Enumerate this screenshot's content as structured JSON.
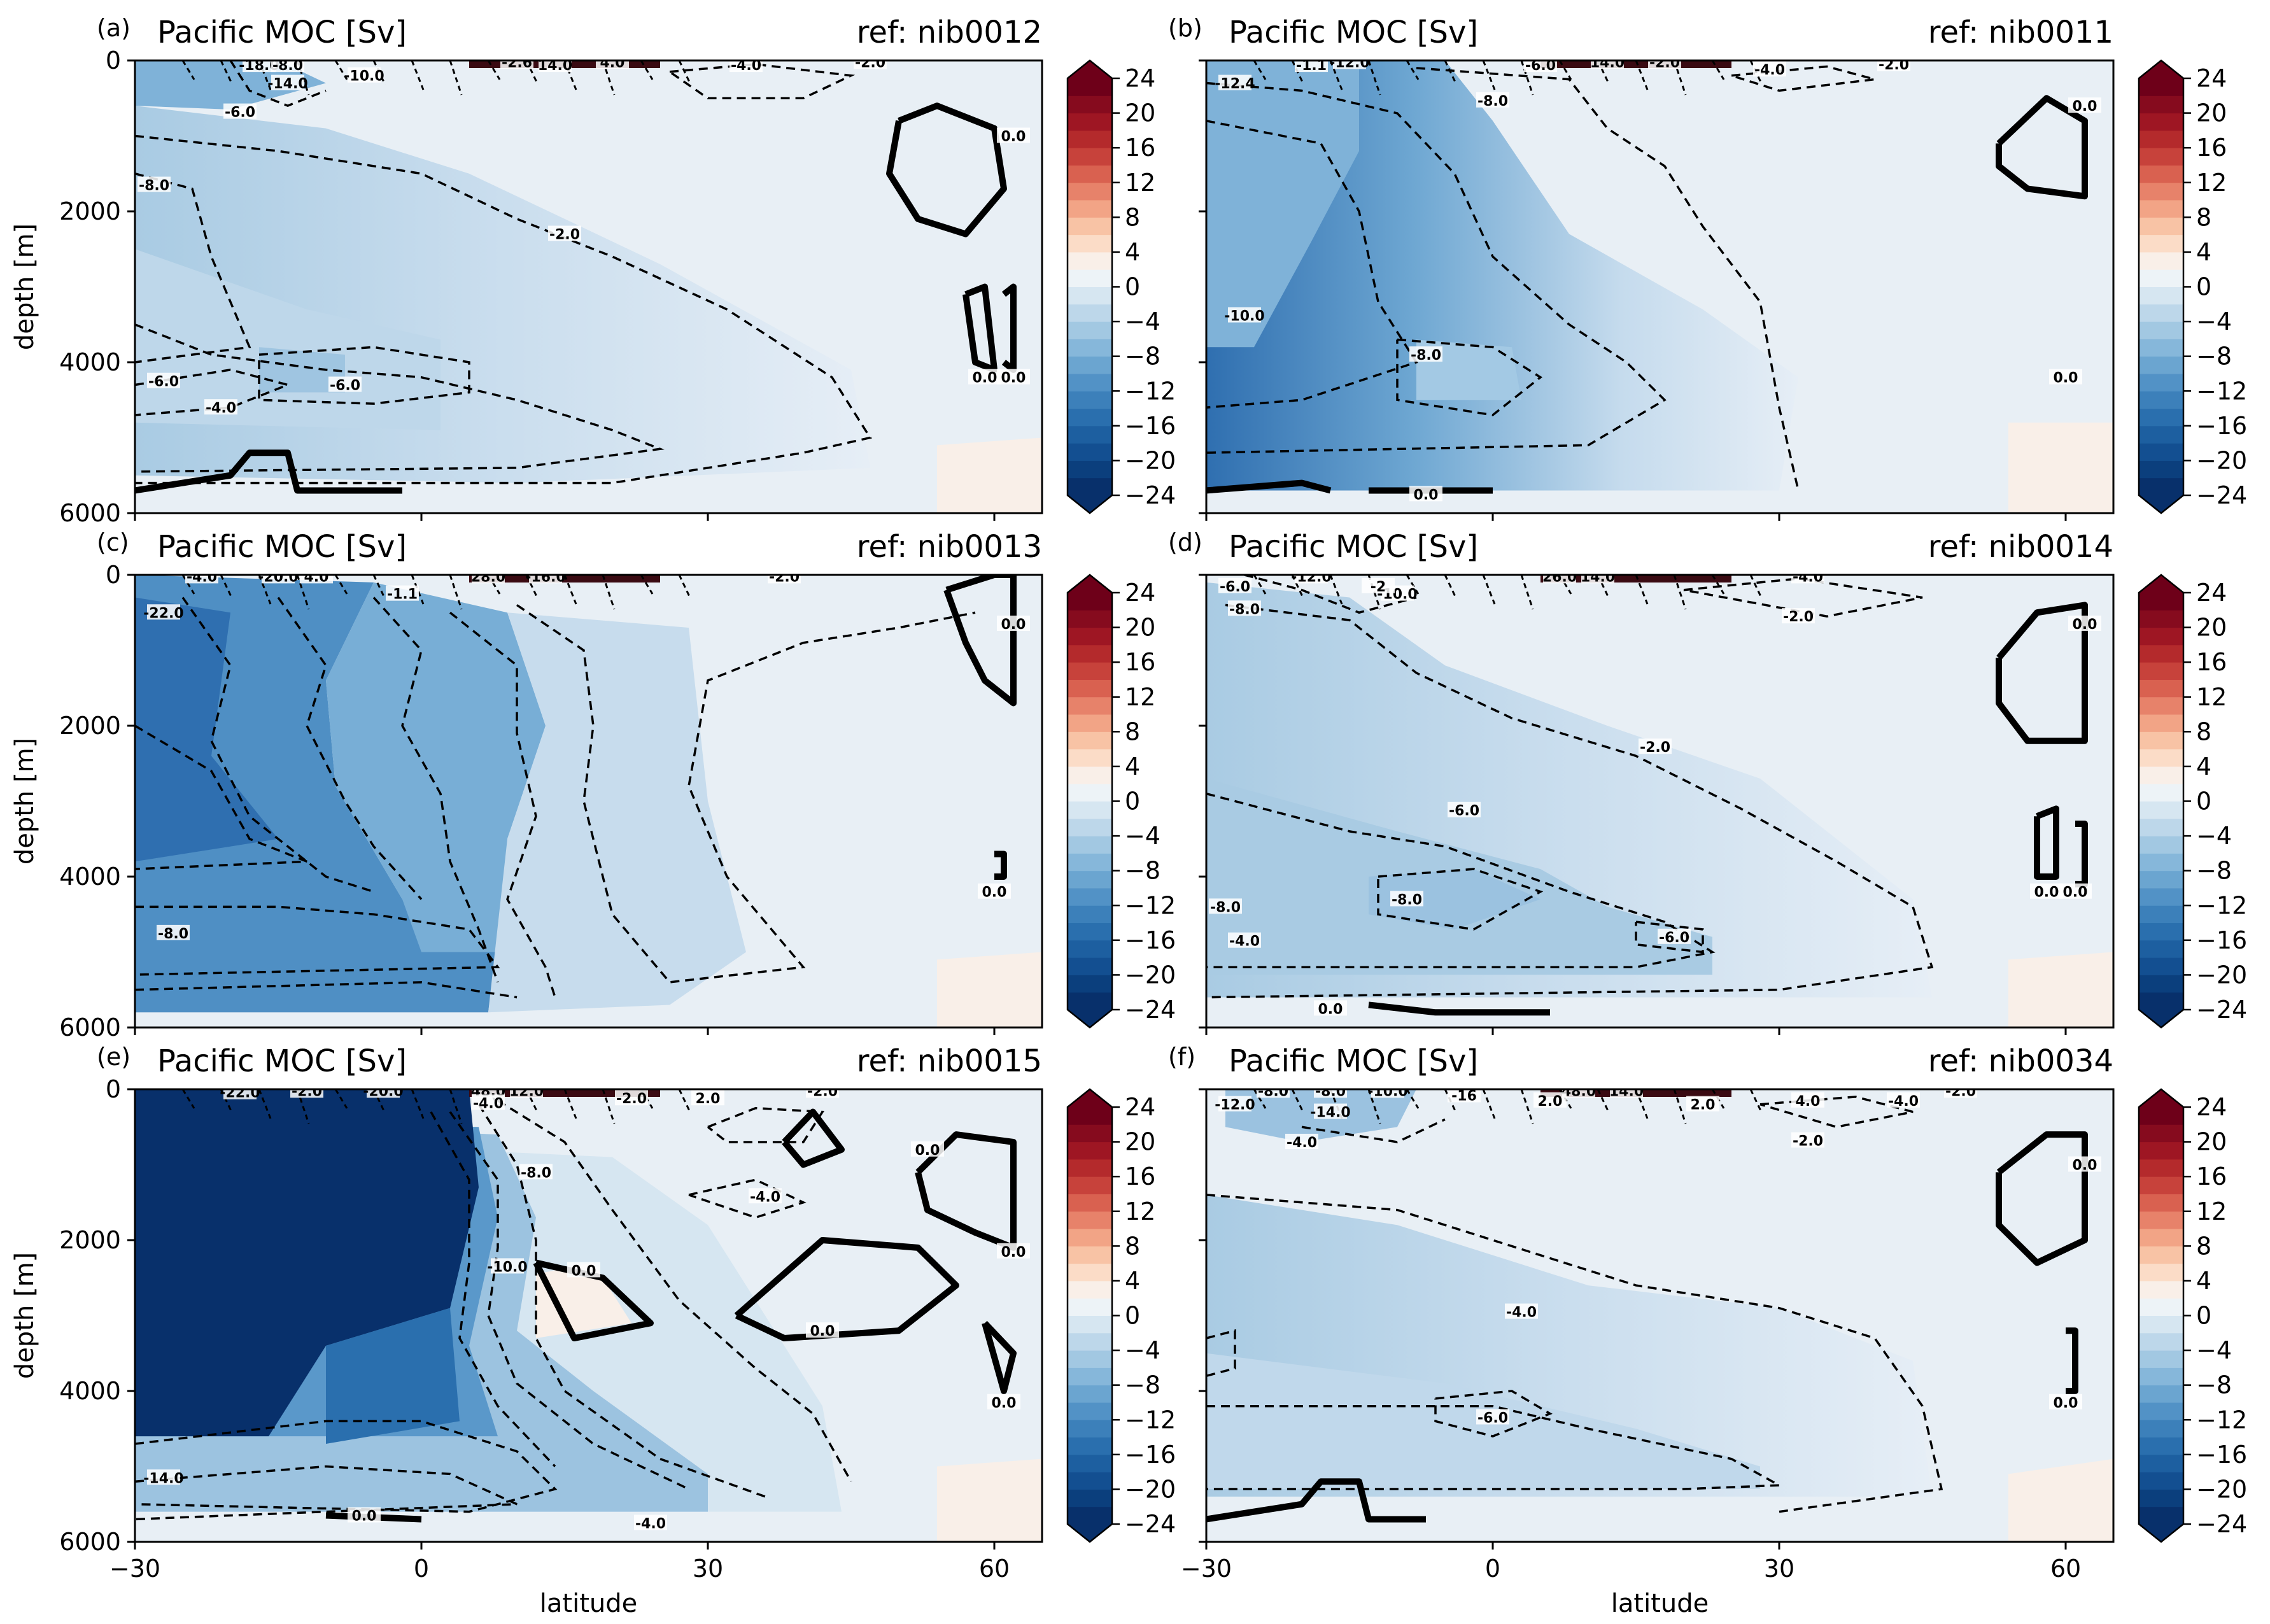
{
  "figure": {
    "xlabel": "latitude",
    "ylabel": "depth [m]"
  },
  "chart_data": [
    {
      "type": "heatmap",
      "panel": "(a)",
      "title": "Pacific MOC [Sv]",
      "ref": "ref: nib0012",
      "xlim": [
        -30,
        65
      ],
      "ylim": [
        6000,
        0
      ],
      "xticks": [
        "−30",
        "0",
        "30",
        "60"
      ],
      "yticks": [
        "0",
        "2000",
        "4000",
        "6000"
      ],
      "contour_labels": [
        {
          "text": "-18.0",
          "lat": -17,
          "depth": 60
        },
        {
          "text": "-14.0",
          "lat": -14,
          "depth": 300
        },
        {
          "text": "-10.0",
          "lat": -6,
          "depth": 200
        },
        {
          "text": "-6.0",
          "lat": -19,
          "depth": 680
        },
        {
          "text": "-2.6",
          "lat": 10,
          "depth": 20
        },
        {
          "text": "-8.0",
          "lat": -14,
          "depth": 60
        },
        {
          "text": "14.0",
          "lat": 14,
          "depth": 60
        },
        {
          "text": "4.0",
          "lat": 20,
          "depth": 20
        },
        {
          "text": "-4.0",
          "lat": 34,
          "depth": 60
        },
        {
          "text": "-2.0",
          "lat": 47,
          "depth": 20
        },
        {
          "text": "-8.0",
          "lat": -28,
          "depth": 1650
        },
        {
          "text": "-2.0",
          "lat": 15,
          "depth": 2300
        },
        {
          "text": "-6.0",
          "lat": -27,
          "depth": 4250
        },
        {
          "text": "-4.0",
          "lat": -21,
          "depth": 4600
        },
        {
          "text": "-6.0",
          "lat": -8,
          "depth": 4300
        },
        {
          "text": "0.0",
          "lat": 62,
          "depth": 1000
        },
        {
          "text": "0.0",
          "lat": 59,
          "depth": 4200
        },
        {
          "text": "0.0",
          "lat": 62,
          "depth": 4200
        }
      ]
    },
    {
      "type": "heatmap",
      "panel": "(b)",
      "title": "Pacific MOC [Sv]",
      "ref": "ref: nib0011",
      "xlim": [
        -30,
        65
      ],
      "ylim": [
        6000,
        0
      ],
      "xticks": [
        "−30",
        "0",
        "30",
        "60"
      ],
      "yticks": [
        "0",
        "2000",
        "4000",
        "6000"
      ],
      "contour_labels": [
        {
          "text": "-1.1",
          "lat": -19,
          "depth": 60
        },
        {
          "text": "-12.0",
          "lat": -15,
          "depth": 20
        },
        {
          "text": "-6.0",
          "lat": 5,
          "depth": 60
        },
        {
          "text": "14.0",
          "lat": 12,
          "depth": 20
        },
        {
          "text": "-2.0",
          "lat": 18,
          "depth": 20
        },
        {
          "text": "-8.0",
          "lat": 0,
          "depth": 530
        },
        {
          "text": "-4.0",
          "lat": 29,
          "depth": 120
        },
        {
          "text": "-2.0",
          "lat": 42,
          "depth": 50
        },
        {
          "text": "-12.4",
          "lat": -27,
          "depth": 300
        },
        {
          "text": "-10.0",
          "lat": -26,
          "depth": 3380
        },
        {
          "text": "-8.0",
          "lat": -7,
          "depth": 3900
        },
        {
          "text": "0.0",
          "lat": 62,
          "depth": 600
        },
        {
          "text": "0.0",
          "lat": 60,
          "depth": 4200
        },
        {
          "text": "0.0",
          "lat": -7,
          "depth": 5750
        }
      ]
    },
    {
      "type": "heatmap",
      "panel": "(c)",
      "title": "Pacific MOC [Sv]",
      "ref": "ref: nib0013",
      "xlim": [
        -30,
        65
      ],
      "ylim": [
        6000,
        0
      ],
      "xticks": [
        "−30",
        "0",
        "30",
        "60"
      ],
      "yticks": [
        "0",
        "2000",
        "4000",
        "6000"
      ],
      "contour_labels": [
        {
          "text": "-4.0",
          "lat": -23,
          "depth": 20
        },
        {
          "text": "-20.0",
          "lat": -15,
          "depth": 20
        },
        {
          "text": "4.0",
          "lat": -11,
          "depth": 20
        },
        {
          "text": "-22.0",
          "lat": -27,
          "depth": 500
        },
        {
          "text": "-1.1",
          "lat": -2,
          "depth": 250
        },
        {
          "text": "28.0",
          "lat": 7,
          "depth": 20
        },
        {
          "text": "-16.0",
          "lat": 13,
          "depth": 20
        },
        {
          "text": "-2.0",
          "lat": 38,
          "depth": 20
        },
        {
          "text": "-8.0",
          "lat": -26,
          "depth": 4750
        },
        {
          "text": "0.0",
          "lat": 62,
          "depth": 650
        },
        {
          "text": "0.0",
          "lat": 60,
          "depth": 4200
        }
      ]
    },
    {
      "type": "heatmap",
      "panel": "(d)",
      "title": "Pacific MOC [Sv]",
      "ref": "ref: nib0014",
      "xlim": [
        -30,
        65
      ],
      "ylim": [
        6000,
        0
      ],
      "xticks": [
        "−30",
        "0",
        "30",
        "60"
      ],
      "yticks": [
        "0",
        "2000",
        "4000",
        "6000"
      ],
      "contour_labels": [
        {
          "text": "-12.0",
          "lat": -19,
          "depth": 20
        },
        {
          "text": "-6.0",
          "lat": -27,
          "depth": 150
        },
        {
          "text": "-10.0",
          "lat": -10,
          "depth": 250
        },
        {
          "text": "-2",
          "lat": -12,
          "depth": 150
        },
        {
          "text": "26.0",
          "lat": 7,
          "depth": 20
        },
        {
          "text": "14.0",
          "lat": 11,
          "depth": 20
        },
        {
          "text": "-8.0",
          "lat": -26,
          "depth": 450
        },
        {
          "text": "-4.0",
          "lat": 33,
          "depth": 20
        },
        {
          "text": "-2.0",
          "lat": 32,
          "depth": 550
        },
        {
          "text": "-2.0",
          "lat": 17,
          "depth": 2280
        },
        {
          "text": "-6.0",
          "lat": -3,
          "depth": 3120
        },
        {
          "text": "-8.0",
          "lat": -28,
          "depth": 4400
        },
        {
          "text": "-8.0",
          "lat": -9,
          "depth": 4300
        },
        {
          "text": "-4.0",
          "lat": -26,
          "depth": 4850
        },
        {
          "text": "-6.0",
          "lat": 19,
          "depth": 4800
        },
        {
          "text": "0.0",
          "lat": 62,
          "depth": 650
        },
        {
          "text": "0.0",
          "lat": 58,
          "depth": 4200
        },
        {
          "text": "0.0",
          "lat": 61,
          "depth": 4200
        },
        {
          "text": "0.0",
          "lat": -17,
          "depth": 5750
        }
      ]
    },
    {
      "type": "heatmap",
      "panel": "(e)",
      "title": "Pacific MOC [Sv]",
      "ref": "ref: nib0015",
      "xlim": [
        -30,
        65
      ],
      "ylim": [
        6000,
        0
      ],
      "xticks": [
        "−30",
        "0",
        "30",
        "60"
      ],
      "yticks": [
        "0",
        "2000",
        "4000",
        "6000"
      ],
      "contour_labels": [
        {
          "text": "-22.0",
          "lat": -19,
          "depth": 40
        },
        {
          "text": "-2.0",
          "lat": -12,
          "depth": 20
        },
        {
          "text": "-20.0",
          "lat": -4,
          "depth": 20
        },
        {
          "text": "48.0",
          "lat": 7,
          "depth": 20
        },
        {
          "text": "12.0",
          "lat": 11,
          "depth": 20
        },
        {
          "text": "-4.0",
          "lat": 7,
          "depth": 180
        },
        {
          "text": "-2.0",
          "lat": 22,
          "depth": 120
        },
        {
          "text": "2.0",
          "lat": 30,
          "depth": 120
        },
        {
          "text": "-2.0",
          "lat": 42,
          "depth": 20
        },
        {
          "text": "-8.0",
          "lat": 12,
          "depth": 1100
        },
        {
          "text": "-4.0",
          "lat": 36,
          "depth": 1420
        },
        {
          "text": "-10.0",
          "lat": 9,
          "depth": 2350
        },
        {
          "text": "0.0",
          "lat": 17,
          "depth": 2400
        },
        {
          "text": "0.0",
          "lat": 53,
          "depth": 800
        },
        {
          "text": "0.0",
          "lat": 42,
          "depth": 3200
        },
        {
          "text": "0.0",
          "lat": 62,
          "depth": 2150
        },
        {
          "text": "0.0",
          "lat": 61,
          "depth": 4150
        },
        {
          "text": "-14.0",
          "lat": -27,
          "depth": 5150
        },
        {
          "text": "-4.0",
          "lat": 24,
          "depth": 5750
        },
        {
          "text": "0.0",
          "lat": -6,
          "depth": 5650
        }
      ]
    },
    {
      "type": "heatmap",
      "panel": "(f)",
      "title": "Pacific MOC [Sv]",
      "ref": "ref: nib0034",
      "xlim": [
        -30,
        65
      ],
      "ylim": [
        6000,
        0
      ],
      "xticks": [
        "−30",
        "0",
        "30",
        "60"
      ],
      "yticks": [
        "0",
        "2000",
        "4000",
        "6000"
      ],
      "contour_labels": [
        {
          "text": "-8.0",
          "lat": -23,
          "depth": 20
        },
        {
          "text": "-12.0",
          "lat": -27,
          "depth": 200
        },
        {
          "text": "-14.0",
          "lat": -17,
          "depth": 300
        },
        {
          "text": "-8.0",
          "lat": -17,
          "depth": 20
        },
        {
          "text": "-10.0",
          "lat": -11,
          "depth": 20
        },
        {
          "text": "-16",
          "lat": -3,
          "depth": 80
        },
        {
          "text": "48.0",
          "lat": 9,
          "depth": 20
        },
        {
          "text": "14.0",
          "lat": 14,
          "depth": 20
        },
        {
          "text": "2.0",
          "lat": 6,
          "depth": 150
        },
        {
          "text": "2.0",
          "lat": 22,
          "depth": 200
        },
        {
          "text": "-4.0",
          "lat": -20,
          "depth": 700
        },
        {
          "text": "4.0",
          "lat": 33,
          "depth": 150
        },
        {
          "text": "-4.0",
          "lat": 43,
          "depth": 150
        },
        {
          "text": "-2.0",
          "lat": 33,
          "depth": 680
        },
        {
          "text": "-2.0",
          "lat": 49,
          "depth": 20
        },
        {
          "text": "0.0",
          "lat": 62,
          "depth": 1000
        },
        {
          "text": "-4.0",
          "lat": 3,
          "depth": 2950
        },
        {
          "text": "-6.0",
          "lat": 0,
          "depth": 4350
        },
        {
          "text": "0.0",
          "lat": 60,
          "depth": 4150
        }
      ]
    }
  ],
  "colorbar": {
    "ticks": [
      "24",
      "20",
      "16",
      "12",
      "8",
      "4",
      "0",
      "−4",
      "−8",
      "−12",
      "−16",
      "−20",
      "−24"
    ],
    "levels": [
      -24,
      -22,
      -20,
      -18,
      -16,
      -14,
      -12,
      -10,
      -8,
      -6,
      -4,
      -2,
      0,
      2,
      4,
      6,
      8,
      10,
      12,
      14,
      16,
      18,
      20,
      22,
      24
    ],
    "colors": [
      "#08306b",
      "#0b3f7d",
      "#134f91",
      "#1d5fa0",
      "#2a6fae",
      "#3c80ba",
      "#5292c6",
      "#6ba5d0",
      "#86b7da",
      "#a2c8e2",
      "#bdd7ea",
      "#d6e6f1",
      "#edf3f7",
      "#f9efe8",
      "#fbdcc7",
      "#f8c3a5",
      "#f2a486",
      "#e7826a",
      "#d96150",
      "#c7423b",
      "#b42a2c",
      "#9e1623",
      "#860b1e",
      "#6e0019"
    ]
  }
}
